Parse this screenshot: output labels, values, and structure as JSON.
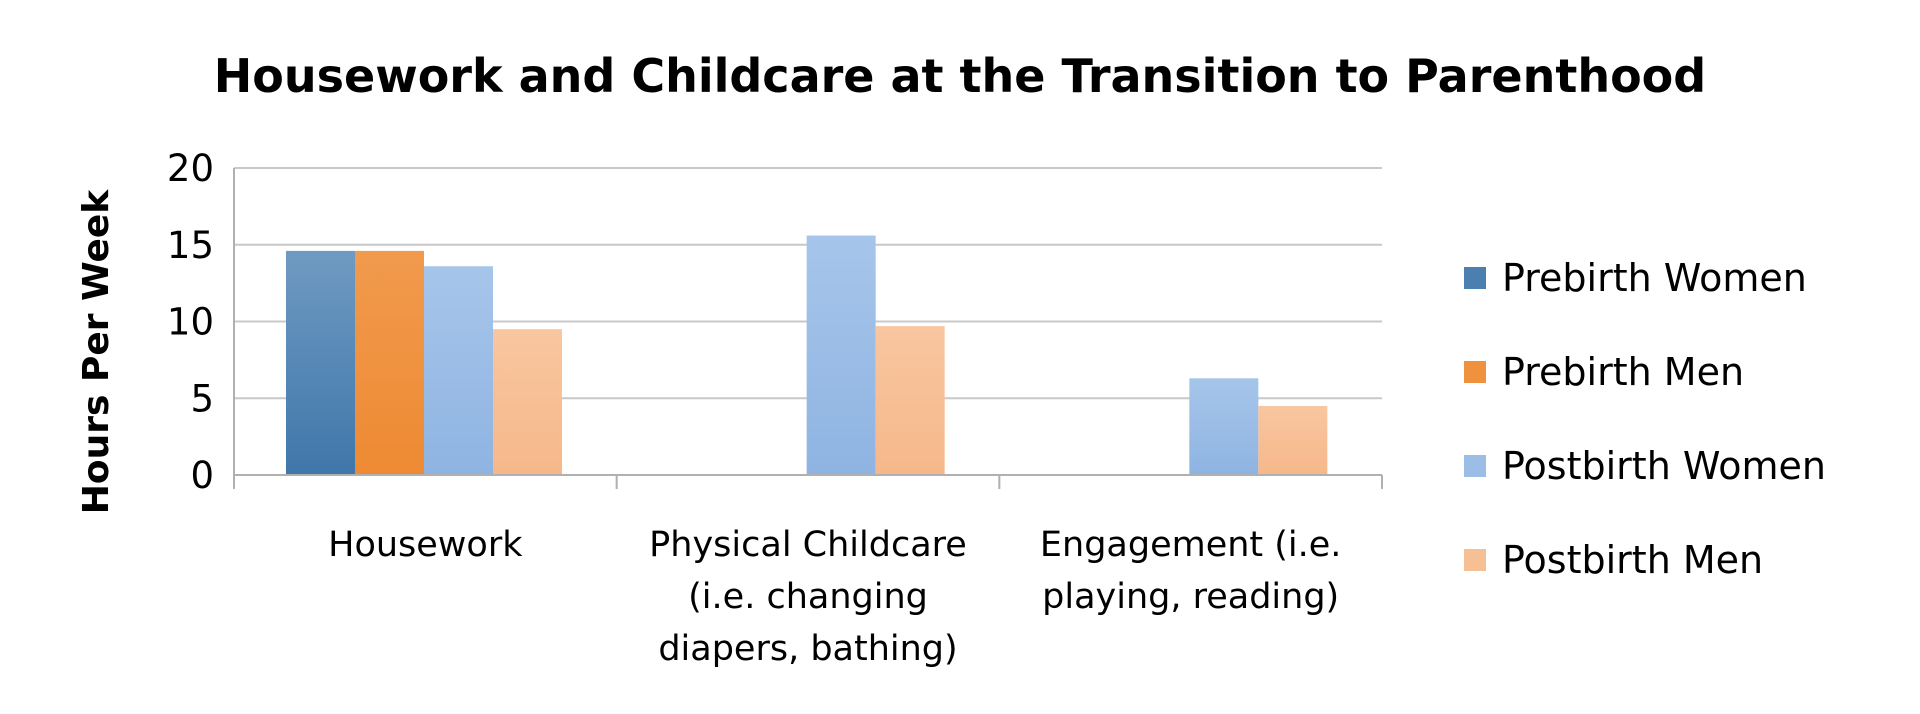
{
  "chart_data": {
    "type": "bar",
    "title": "Housework and Childcare at the Transition to Parenthood",
    "xlabel": "",
    "ylabel": "Hours Per Week",
    "ylim": [
      0,
      20
    ],
    "yticks": [
      "0",
      "5",
      "10",
      "15",
      "20"
    ],
    "categories": [
      [
        "Housework"
      ],
      [
        "Physical Childcare",
        "(i.e. changing",
        "diapers, bathing)"
      ],
      [
        "Engagement (i.e.",
        "playing, reading)"
      ]
    ],
    "series": [
      {
        "name": "Prebirth Women",
        "color": "#4a7fb0",
        "values": [
          14.6,
          null,
          null
        ]
      },
      {
        "name": "Prebirth Men",
        "color": "#f0923d",
        "values": [
          14.6,
          null,
          null
        ]
      },
      {
        "name": "Postbirth Women",
        "color": "#9bbde6",
        "values": [
          13.6,
          15.6,
          6.3
        ]
      },
      {
        "name": "Postbirth Men",
        "color": "#f7bf94",
        "values": [
          9.5,
          9.7,
          4.5
        ]
      }
    ],
    "grid": true,
    "legend_position": "right"
  }
}
